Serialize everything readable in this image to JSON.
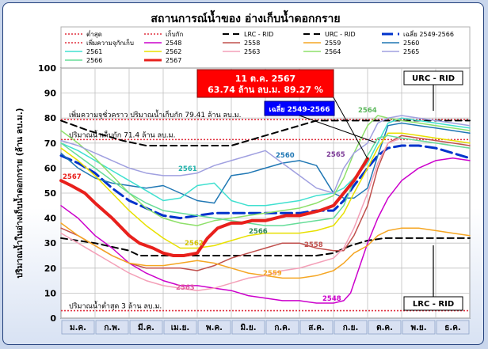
{
  "chart_data": {
    "type": "line",
    "title": "สถานการณ์น้ำของ อ่างเก็บน้ำดอกกราย",
    "ylabel": "ปริมาณน้ำในอ่างเก็บน้ำดอกกราย (ล้าน ลบ.ม.)",
    "ylim": [
      0,
      100
    ],
    "yticks": [
      0,
      10,
      20,
      30,
      40,
      50,
      60,
      70,
      80,
      90,
      100
    ],
    "categories": [
      "ม.ค.",
      "ก.พ.",
      "มี.ค.",
      "เม.ย.",
      "พ.ค.",
      "มิ.ย.",
      "ก.ค.",
      "ส.ค.",
      "ก.ย.",
      "ต.ค.",
      "พ.ย.",
      "ธ.ค."
    ],
    "grid": true,
    "legend": {
      "position": "top",
      "entries": [
        {
          "label": "ต่ำสุด",
          "color": "#e0303f",
          "style": "dotted",
          "width": 1.5
        },
        {
          "label": "เก็บกัก",
          "color": "#e0303f",
          "style": "dotted",
          "width": 1.5
        },
        {
          "label": "LRC - RID",
          "color": "#000000",
          "style": "dashed",
          "width": 2
        },
        {
          "label": "URC - RID",
          "color": "#000000",
          "style": "dashed",
          "width": 2
        },
        {
          "label": "เฉลี่ย 2549-2566",
          "color": "#0033cc",
          "style": "longdash",
          "width": 3
        },
        {
          "label": "เพิ่มความจุกักเก็บ",
          "color": "#e0303f",
          "style": "dotted",
          "width": 1.5
        },
        {
          "label": "2548",
          "color": "#cc00cc",
          "style": "solid",
          "width": 1.5
        },
        {
          "label": "2558",
          "color": "#c0504d",
          "style": "solid",
          "width": 1.5
        },
        {
          "label": "2559",
          "color": "#f5a623",
          "style": "solid",
          "width": 1.5
        },
        {
          "label": "2560",
          "color": "#1f77b4",
          "style": "solid",
          "width": 1.5
        },
        {
          "label": "2561",
          "color": "#40e0d0",
          "style": "solid",
          "width": 1.5
        },
        {
          "label": "2562",
          "color": "#e8e000",
          "style": "solid",
          "width": 1.5
        },
        {
          "label": "2563",
          "color": "#f4a0b8",
          "style": "solid",
          "width": 1.5
        },
        {
          "label": "2564",
          "color": "#8ee06a",
          "style": "solid",
          "width": 1.5
        },
        {
          "label": "2565",
          "color": "#a0a0e0",
          "style": "solid",
          "width": 1.5
        },
        {
          "label": "2566",
          "color": "#66dd99",
          "style": "solid",
          "width": 1.5
        },
        {
          "label": "2567",
          "color": "#e8201c",
          "style": "solid",
          "width": 4
        }
      ]
    },
    "reference_lines": [
      {
        "name": "เพิ่มความจุกักเก็บ",
        "value": 79.41,
        "color": "#e0303f",
        "label": "เพิ่มความจุชั่วคราว ปริมาณน้ำเก็บกัก 79.41 ล้าน ลบ.ม."
      },
      {
        "name": "เก็บกัก",
        "value": 71.4,
        "color": "#e0303f",
        "label": "ปริมาณน้ำเก็บกัก 71.4 ล้าน ลบ.ม."
      },
      {
        "name": "ต่ำสุด",
        "value": 3,
        "color": "#e0303f",
        "label": "ปริมาณน้ำต่ำสุด 3 ล้าน ลบ.ม."
      }
    ],
    "series": [
      {
        "name": "URC - RID",
        "color": "#000000",
        "style": "dashed",
        "width": 2,
        "x": [
          0,
          0.4,
          0.8,
          1.3,
          1.8,
          2.5,
          3.0,
          4.0,
          5.0,
          6.0,
          6.5,
          7.0,
          7.5,
          8.0,
          8.5,
          9.0,
          9.5,
          10.0,
          10.5,
          11.0,
          11.5,
          12.0
        ],
        "y": [
          79,
          77,
          75,
          73,
          71,
          69,
          69,
          69,
          69,
          73,
          75,
          77,
          79,
          79,
          79,
          79,
          79,
          79,
          79,
          79,
          79,
          79
        ]
      },
      {
        "name": "LRC - RID",
        "color": "#000000",
        "style": "dashed",
        "width": 2,
        "x": [
          0,
          1,
          2,
          2.3,
          3,
          4,
          5,
          6,
          7,
          7.5,
          8,
          8.5,
          9,
          9.5,
          10,
          11,
          12
        ],
        "y": [
          32,
          30,
          27,
          25,
          25,
          25,
          25,
          25,
          25,
          25,
          26,
          29,
          31,
          32,
          32,
          32,
          32
        ]
      },
      {
        "name": "เฉลี่ย 2549-2566",
        "color": "#0033cc",
        "style": "longdash",
        "width": 3,
        "x": [
          0,
          0.5,
          1,
          1.5,
          2,
          2.5,
          3,
          3.5,
          4,
          4.5,
          5,
          5.5,
          6,
          6.5,
          7,
          7.5,
          8,
          8.3,
          8.6,
          9,
          9.3,
          9.6,
          10,
          10.5,
          11,
          11.5,
          12
        ],
        "y": [
          65,
          62,
          58,
          52,
          47,
          44,
          41,
          40,
          41,
          42,
          42,
          42,
          42,
          42,
          42,
          43,
          43,
          47,
          53,
          60,
          65,
          68,
          69,
          69,
          68,
          66,
          64
        ]
      },
      {
        "name": "2548",
        "color": "#cc00cc",
        "width": 1.5,
        "x": [
          0,
          0.5,
          1,
          1.5,
          2,
          2.5,
          3,
          3.5,
          4,
          4.5,
          5,
          5.5,
          6,
          6.5,
          7,
          7.5,
          8,
          8.3,
          8.5,
          8.8,
          9,
          9.3,
          9.6,
          10,
          10.5,
          11,
          11.5,
          12
        ],
        "y": [
          45,
          40,
          33,
          28,
          22,
          18,
          15,
          13,
          13,
          12,
          11,
          9,
          8,
          7,
          7,
          6,
          6,
          7,
          10,
          22,
          30,
          40,
          48,
          55,
          60,
          63,
          64,
          63
        ]
      },
      {
        "name": "2558",
        "color": "#c0504d",
        "width": 1.5,
        "x": [
          0,
          0.5,
          1,
          1.5,
          2,
          2.5,
          3,
          3.5,
          4,
          4.5,
          5,
          5.5,
          6,
          6.5,
          7,
          7.5,
          8,
          8.3,
          8.6,
          9,
          9.3,
          9.6,
          10,
          10.5,
          11,
          11.5,
          12
        ],
        "y": [
          36,
          33,
          29,
          25,
          22,
          20,
          20,
          20,
          19,
          21,
          24,
          26,
          28,
          30,
          30,
          28,
          27,
          27,
          33,
          45,
          60,
          70,
          73,
          72,
          71,
          70,
          69
        ]
      },
      {
        "name": "2559",
        "color": "#f5a623",
        "width": 1.5,
        "x": [
          0,
          0.5,
          1,
          1.5,
          2,
          2.5,
          3,
          3.5,
          4,
          4.5,
          5,
          5.5,
          6,
          6.5,
          7,
          7.5,
          8,
          8.3,
          8.6,
          9,
          9.3,
          9.6,
          10,
          10.5,
          11,
          11.5,
          12
        ],
        "y": [
          38,
          33,
          29,
          25,
          22,
          21,
          21,
          22,
          23,
          22,
          20,
          18,
          17,
          16,
          16,
          17,
          19,
          22,
          26,
          29,
          33,
          35,
          36,
          36,
          35,
          34,
          33
        ]
      },
      {
        "name": "2560",
        "color": "#1f77b4",
        "width": 1.5,
        "x": [
          0,
          0.5,
          1,
          1.5,
          2,
          2.5,
          3,
          3.5,
          4,
          4.5,
          5,
          5.5,
          6,
          6.5,
          7,
          7.5,
          8,
          8.3,
          8.6,
          9,
          9.3,
          9.6,
          10,
          10.5,
          11,
          11.5,
          12
        ],
        "y": [
          66,
          60,
          56,
          54,
          53,
          52,
          53,
          50,
          47,
          46,
          57,
          58,
          60,
          62,
          63,
          61,
          50,
          48,
          48,
          52,
          65,
          77,
          78,
          77,
          76,
          75,
          74
        ]
      },
      {
        "name": "2561",
        "color": "#40e0d0",
        "width": 1.5,
        "x": [
          0,
          0.5,
          1,
          1.5,
          2,
          2.5,
          3,
          3.5,
          4,
          4.5,
          5,
          5.5,
          6,
          6.5,
          7,
          7.5,
          8,
          8.3,
          8.6,
          9,
          9.3,
          9.6,
          10,
          10.5,
          11,
          11.5,
          12
        ],
        "y": [
          70,
          67,
          63,
          59,
          55,
          51,
          47,
          48,
          53,
          54,
          47,
          45,
          45,
          46,
          47,
          49,
          50,
          52,
          56,
          62,
          70,
          78,
          80,
          79,
          78,
          77,
          76
        ]
      },
      {
        "name": "2562",
        "color": "#e8e000",
        "width": 1.5,
        "x": [
          0,
          0.5,
          1,
          1.5,
          2,
          2.5,
          3,
          3.5,
          4,
          4.5,
          5,
          5.5,
          6,
          6.5,
          7,
          7.5,
          8,
          8.3,
          8.6,
          9,
          9.3,
          9.6,
          10,
          10.5,
          11,
          11.5,
          12
        ],
        "y": [
          68,
          63,
          57,
          50,
          43,
          37,
          32,
          28,
          28,
          29,
          31,
          33,
          34,
          34,
          34,
          35,
          37,
          42,
          50,
          60,
          68,
          74,
          74,
          73,
          72,
          71,
          70
        ]
      },
      {
        "name": "2563",
        "color": "#f4a0b8",
        "width": 1.5,
        "x": [
          0,
          0.5,
          1,
          1.5,
          2,
          2.5,
          3,
          3.5,
          4,
          4.5,
          5,
          5.5,
          6,
          6.5,
          7,
          7.5,
          8,
          8.3,
          8.6,
          9,
          9.3,
          9.6,
          10,
          10.5,
          11,
          11.5,
          12
        ],
        "y": [
          34,
          30,
          26,
          22,
          18,
          15,
          13,
          12,
          11,
          12,
          14,
          16,
          17,
          19,
          20,
          22,
          24,
          28,
          36,
          50,
          62,
          70,
          72,
          71,
          70,
          69,
          68
        ]
      },
      {
        "name": "2564",
        "color": "#8ee06a",
        "width": 1.5,
        "x": [
          0,
          0.5,
          1,
          1.5,
          2,
          2.5,
          3,
          3.5,
          4,
          4.5,
          5,
          5.5,
          6,
          6.5,
          7,
          7.5,
          8,
          8.3,
          8.6,
          9,
          9.3,
          9.6,
          10,
          10.5,
          11,
          11.5,
          12
        ],
        "y": [
          75,
          70,
          64,
          57,
          50,
          44,
          40,
          38,
          37,
          39,
          40,
          41,
          42,
          43,
          44,
          46,
          49,
          56,
          66,
          77,
          81,
          80,
          79,
          78,
          77,
          76,
          75
        ]
      },
      {
        "name": "2565",
        "color": "#a0a0e0",
        "width": 1.5,
        "x": [
          0,
          0.5,
          1,
          1.5,
          2,
          2.5,
          3,
          3.5,
          4,
          4.5,
          5,
          5.5,
          6,
          6.5,
          7,
          7.5,
          8,
          8.3,
          8.6,
          9,
          9.3,
          9.6,
          10,
          10.5,
          11,
          11.5,
          12
        ],
        "y": [
          71,
          69,
          66,
          63,
          60,
          58,
          57,
          57,
          58,
          61,
          63,
          65,
          67,
          62,
          57,
          52,
          50,
          60,
          66,
          70,
          78,
          80,
          81,
          80,
          79,
          78,
          77
        ]
      },
      {
        "name": "2566",
        "color": "#66dd99",
        "width": 1.5,
        "x": [
          0,
          0.5,
          1,
          1.5,
          2,
          2.5,
          3,
          3.5,
          4,
          4.5,
          5,
          5.5,
          6,
          6.5,
          7,
          7.5,
          8,
          8.3,
          8.6,
          9,
          9.3,
          9.6,
          10,
          10.5,
          11,
          11.5,
          12
        ],
        "y": [
          70,
          65,
          60,
          55,
          50,
          46,
          43,
          42,
          41,
          40,
          39,
          38,
          37,
          37,
          38,
          39,
          40,
          45,
          55,
          65,
          72,
          73,
          72,
          71,
          70,
          69,
          68
        ]
      },
      {
        "name": "2567",
        "color": "#e8201c",
        "width": 4,
        "x": [
          0,
          0.3,
          0.7,
          1,
          1.5,
          2,
          2.3,
          2.7,
          3,
          3.3,
          3.6,
          4,
          4.3,
          4.6,
          5,
          5.3,
          5.6,
          6,
          6.3,
          6.6,
          7,
          7.3,
          7.6,
          8,
          8.3,
          8.6,
          9
        ],
        "y": [
          55,
          53,
          50,
          46,
          40,
          33,
          30,
          28,
          26,
          25,
          25,
          26,
          32,
          36,
          38,
          38,
          39,
          39,
          40,
          41,
          41,
          42,
          43,
          45,
          50,
          55,
          63.74
        ]
      }
    ],
    "annotations": {
      "callout_2567": {
        "line1": "11 ต.ค. 2567",
        "line2": "63.74 ล้าน ลบ.ม. 89.27 %"
      },
      "avg_box": "เฉลี่ย 2549-2566",
      "urc_box": "URC - RID",
      "lrc_box": "LRC - RID",
      "year_labels": [
        {
          "text": "2567",
          "color": "#e8201c"
        },
        {
          "text": "2561",
          "color": "#20b2aa"
        },
        {
          "text": "2560",
          "color": "#1f77b4"
        },
        {
          "text": "2565",
          "color": "#7d3c98"
        },
        {
          "text": "2564",
          "color": "#5cb85c"
        },
        {
          "text": "2562",
          "color": "#d4c400"
        },
        {
          "text": "2566",
          "color": "#2e8b57"
        },
        {
          "text": "2558",
          "color": "#c0504d"
        },
        {
          "text": "2559",
          "color": "#f5a623"
        },
        {
          "text": "2563",
          "color": "#e05c9e"
        },
        {
          "text": "2548",
          "color": "#cc00cc"
        }
      ]
    }
  }
}
